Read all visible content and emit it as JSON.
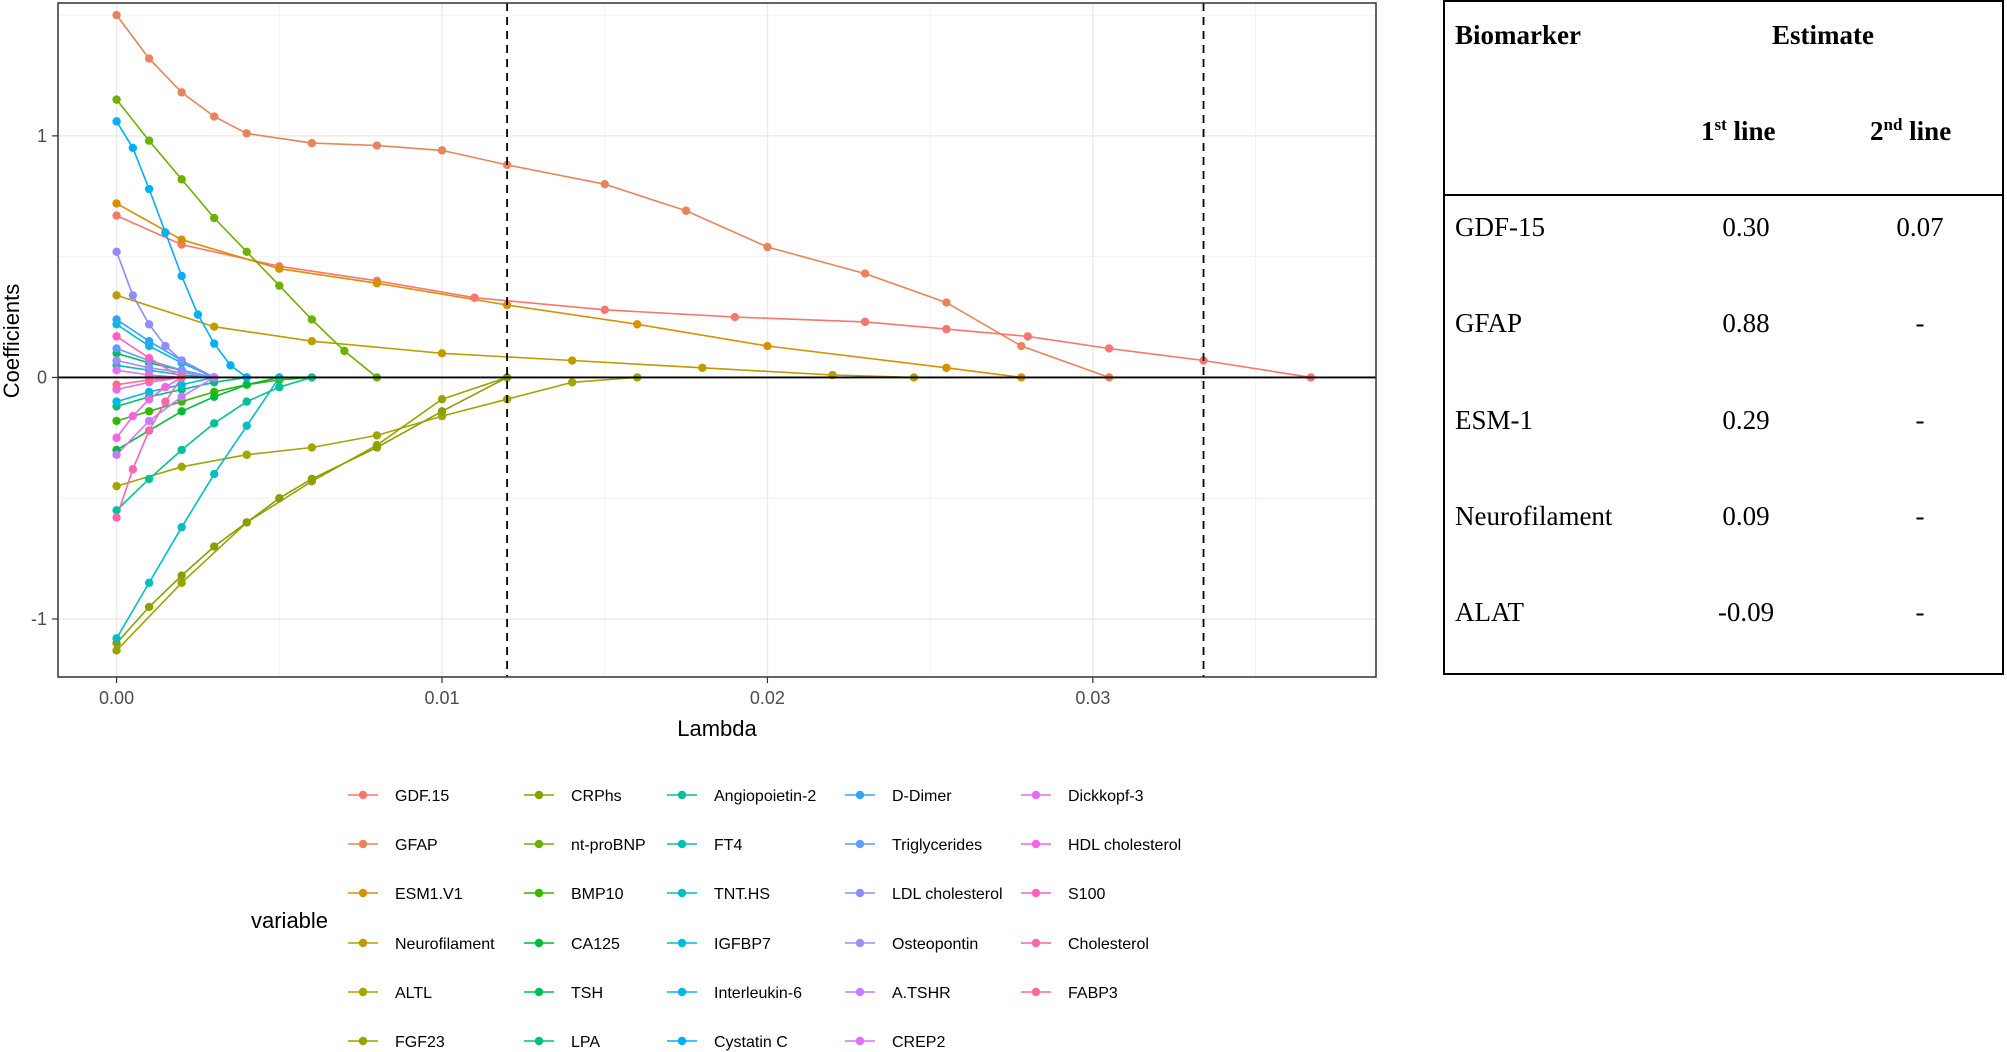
{
  "chart_data": {
    "type": "line",
    "xlabel": "Lambda",
    "ylabel": "Coefficients",
    "xlim": [
      -0.0018,
      0.0387
    ],
    "ylim": [
      -1.24,
      1.55
    ],
    "x_ticks": [
      0.0,
      0.01,
      0.02,
      0.03
    ],
    "x_tick_labels": [
      "0.00",
      "0.01",
      "0.02",
      "0.03"
    ],
    "y_ticks": [
      -1,
      0,
      1
    ],
    "y_tick_labels": [
      "-1",
      "0",
      "1"
    ],
    "vlines": [
      0.012,
      0.0334
    ],
    "hline": 0,
    "grid": true,
    "legend_title": "variable",
    "legend_position": "bottom",
    "legend_columns": 5,
    "series": [
      {
        "name": "GDF.15",
        "color": "#F8766D",
        "x": [
          0.0,
          0.002,
          0.005,
          0.008,
          0.011,
          0.015,
          0.019,
          0.023,
          0.0255,
          0.028,
          0.0305,
          0.0334,
          0.0367
        ],
        "y": [
          0.67,
          0.55,
          0.46,
          0.4,
          0.33,
          0.28,
          0.25,
          0.23,
          0.2,
          0.17,
          0.12,
          0.07,
          0.0
        ]
      },
      {
        "name": "GFAP",
        "color": "#E8845C",
        "x": [
          0.0,
          0.001,
          0.002,
          0.003,
          0.004,
          0.006,
          0.008,
          0.01,
          0.012,
          0.015,
          0.0175,
          0.02,
          0.023,
          0.0255,
          0.0278,
          0.0305
        ],
        "y": [
          1.5,
          1.32,
          1.18,
          1.08,
          1.01,
          0.97,
          0.96,
          0.94,
          0.88,
          0.8,
          0.69,
          0.54,
          0.43,
          0.31,
          0.13,
          0.0
        ]
      },
      {
        "name": "ESM1.V1",
        "color": "#D89000",
        "x": [
          0.0,
          0.002,
          0.005,
          0.008,
          0.012,
          0.016,
          0.02,
          0.0255,
          0.0278
        ],
        "y": [
          0.72,
          0.57,
          0.45,
          0.39,
          0.3,
          0.22,
          0.13,
          0.04,
          0.0
        ]
      },
      {
        "name": "Neurofilament",
        "color": "#C09B00",
        "x": [
          0.0,
          0.003,
          0.006,
          0.01,
          0.014,
          0.018,
          0.022,
          0.0245
        ],
        "y": [
          0.34,
          0.21,
          0.15,
          0.1,
          0.07,
          0.04,
          0.01,
          0.0
        ]
      },
      {
        "name": "ALTL",
        "color": "#A3A500",
        "x": [
          0.0,
          0.002,
          0.004,
          0.006,
          0.008,
          0.01,
          0.012,
          0.014,
          0.016
        ],
        "y": [
          -0.45,
          -0.37,
          -0.32,
          -0.29,
          -0.24,
          -0.16,
          -0.09,
          -0.02,
          0.0
        ]
      },
      {
        "name": "FGF23",
        "color": "#9AA300",
        "x": [
          0.0,
          0.002,
          0.004,
          0.006,
          0.008,
          0.01,
          0.012
        ],
        "y": [
          -1.13,
          -0.85,
          -0.6,
          -0.43,
          -0.28,
          -0.09,
          0.0
        ]
      },
      {
        "name": "CRPhs",
        "color": "#8BA000",
        "x": [
          0.0,
          0.001,
          0.002,
          0.003,
          0.004,
          0.005,
          0.006,
          0.008,
          0.01,
          0.012
        ],
        "y": [
          -1.1,
          -0.95,
          -0.82,
          -0.7,
          -0.6,
          -0.5,
          -0.42,
          -0.29,
          -0.14,
          0.0
        ]
      },
      {
        "name": "nt-proBNP",
        "color": "#6BB100",
        "x": [
          0.0,
          0.001,
          0.002,
          0.003,
          0.004,
          0.005,
          0.006,
          0.007,
          0.008
        ],
        "y": [
          1.15,
          0.98,
          0.82,
          0.66,
          0.52,
          0.38,
          0.24,
          0.11,
          0.0
        ]
      },
      {
        "name": "BMP10",
        "color": "#39B600",
        "x": [
          0.0,
          0.001,
          0.002,
          0.003,
          0.004,
          0.005,
          0.006
        ],
        "y": [
          -0.18,
          -0.14,
          -0.1,
          -0.06,
          -0.03,
          -0.01,
          0.0
        ]
      },
      {
        "name": "CA125",
        "color": "#00BA38",
        "x": [
          0.0,
          0.001,
          0.002,
          0.003,
          0.004,
          0.005
        ],
        "y": [
          -0.3,
          -0.22,
          -0.14,
          -0.08,
          -0.03,
          0.0
        ]
      },
      {
        "name": "TSH",
        "color": "#00BD5C",
        "x": [
          0.0,
          0.001,
          0.002,
          0.003
        ],
        "y": [
          0.1,
          0.06,
          0.03,
          0.0
        ]
      },
      {
        "name": "LPA",
        "color": "#00BF7D",
        "x": [
          0.0,
          0.001,
          0.002,
          0.003,
          0.004
        ],
        "y": [
          -0.12,
          -0.08,
          -0.05,
          -0.02,
          0.0
        ]
      },
      {
        "name": "Angiopoietin-2",
        "color": "#00C19A",
        "x": [
          0.0,
          0.001,
          0.002,
          0.003,
          0.004,
          0.005,
          0.006
        ],
        "y": [
          -0.55,
          -0.42,
          -0.3,
          -0.19,
          -0.1,
          -0.04,
          0.0
        ]
      },
      {
        "name": "FT4",
        "color": "#00C0B4",
        "x": [
          0.0,
          0.001,
          0.002,
          0.003
        ],
        "y": [
          0.05,
          0.03,
          0.01,
          0.0
        ]
      },
      {
        "name": "TNT.HS",
        "color": "#00BFC4",
        "x": [
          0.0,
          0.001,
          0.002,
          0.003,
          0.004,
          0.005
        ],
        "y": [
          -1.08,
          -0.85,
          -0.62,
          -0.4,
          -0.2,
          0.0
        ]
      },
      {
        "name": "IGFBP7",
        "color": "#00BCD8",
        "x": [
          0.0,
          0.001,
          0.002,
          0.003
        ],
        "y": [
          0.22,
          0.13,
          0.06,
          0.0
        ]
      },
      {
        "name": "Interleukin-6",
        "color": "#00B8E7",
        "x": [
          0.0,
          0.001,
          0.002,
          0.003
        ],
        "y": [
          -0.1,
          -0.06,
          -0.03,
          0.0
        ]
      },
      {
        "name": "Cystatin C",
        "color": "#00B0F6",
        "x": [
          0.0,
          0.0005,
          0.001,
          0.0015,
          0.002,
          0.0025,
          0.003,
          0.0035,
          0.004
        ],
        "y": [
          1.06,
          0.95,
          0.78,
          0.6,
          0.42,
          0.26,
          0.14,
          0.05,
          0.0
        ]
      },
      {
        "name": "D-Dimer",
        "color": "#35A2FF",
        "x": [
          0.0,
          0.001,
          0.002,
          0.003
        ],
        "y": [
          0.24,
          0.15,
          0.07,
          0.0
        ]
      },
      {
        "name": "Triglycerides",
        "color": "#619CFF",
        "x": [
          0.0,
          0.001,
          0.002,
          0.003
        ],
        "y": [
          0.12,
          0.07,
          0.03,
          0.0
        ]
      },
      {
        "name": "LDL cholesterol",
        "color": "#8E8CFF",
        "x": [
          0.0,
          0.0005,
          0.001,
          0.0015,
          0.002,
          0.003
        ],
        "y": [
          0.52,
          0.34,
          0.22,
          0.13,
          0.07,
          0.0
        ]
      },
      {
        "name": "Osteopontin",
        "color": "#A58AFF",
        "x": [
          0.0,
          0.001,
          0.002,
          0.003
        ],
        "y": [
          0.07,
          0.04,
          0.02,
          0.0
        ]
      },
      {
        "name": "A.TSHR",
        "color": "#C77CFF",
        "x": [
          0.0,
          0.001,
          0.002,
          0.003
        ],
        "y": [
          -0.32,
          -0.18,
          -0.08,
          0.0
        ]
      },
      {
        "name": "CREP2",
        "color": "#DF70F8",
        "x": [
          0.0,
          0.001,
          0.002
        ],
        "y": [
          0.03,
          0.01,
          0.0
        ]
      },
      {
        "name": "Dickkopf-3",
        "color": "#E76BF3",
        "x": [
          0.0,
          0.001,
          0.002
        ],
        "y": [
          -0.05,
          -0.02,
          0.0
        ]
      },
      {
        "name": "HDL cholesterol",
        "color": "#F564E3",
        "x": [
          0.0,
          0.0005,
          0.001,
          0.0015,
          0.002
        ],
        "y": [
          -0.25,
          -0.16,
          -0.09,
          -0.04,
          0.0
        ]
      },
      {
        "name": "S100",
        "color": "#FF61C3",
        "x": [
          0.0,
          0.001,
          0.002
        ],
        "y": [
          0.17,
          0.08,
          0.0
        ]
      },
      {
        "name": "Cholesterol",
        "color": "#FF64B0",
        "x": [
          0.0,
          0.0005,
          0.001,
          0.0015,
          0.002
        ],
        "y": [
          -0.58,
          -0.38,
          -0.22,
          -0.1,
          0.0
        ]
      },
      {
        "name": "FABP3",
        "color": "#FF6C91",
        "x": [
          0.0,
          0.001,
          0.002
        ],
        "y": [
          -0.03,
          -0.01,
          0.0
        ]
      }
    ]
  },
  "table": {
    "col_biomarker": "Biomarker",
    "col_estimate": "Estimate",
    "first_line_num": "1",
    "first_line_sup": "st",
    "line_word": "line",
    "second_line_num": "2",
    "second_line_sup": "nd",
    "rows": [
      {
        "biomarker": "GDF-15",
        "first": "0.30",
        "second": "0.07"
      },
      {
        "biomarker": "GFAP",
        "first": "0.88",
        "second": "-"
      },
      {
        "biomarker": "ESM-1",
        "first": "0.29",
        "second": "-"
      },
      {
        "biomarker": "Neurofilament",
        "first": "0.09",
        "second": "-"
      },
      {
        "biomarker": "ALAT",
        "first": "-0.09",
        "second": "-"
      }
    ]
  }
}
